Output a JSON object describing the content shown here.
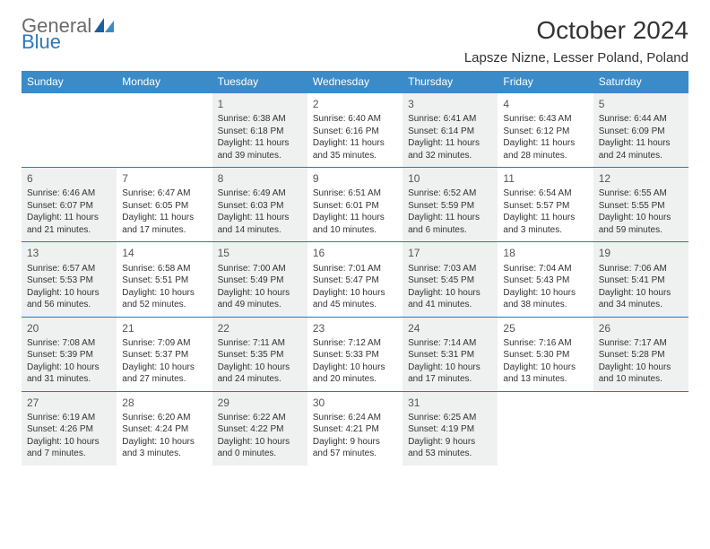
{
  "brand": {
    "word1": "General",
    "word2": "Blue"
  },
  "title": "October 2024",
  "location": "Lapsze Nizne, Lesser Poland, Poland",
  "colors": {
    "header_bg": "#3b8bc9",
    "header_text": "#ffffff",
    "rule": "#2f77bb",
    "shaded_bg": "#eff0f0",
    "brand_gray": "#6b6b6b",
    "brand_blue": "#2f77bb"
  },
  "weekdays": [
    "Sunday",
    "Monday",
    "Tuesday",
    "Wednesday",
    "Thursday",
    "Friday",
    "Saturday"
  ],
  "weeks": [
    [
      {
        "num": "",
        "sunrise": "",
        "sunset": "",
        "daylight": "",
        "shaded": true
      },
      {
        "num": "",
        "sunrise": "",
        "sunset": "",
        "daylight": "",
        "shaded": false
      },
      {
        "num": "1",
        "sunrise": "Sunrise: 6:38 AM",
        "sunset": "Sunset: 6:18 PM",
        "daylight": "Daylight: 11 hours and 39 minutes.",
        "shaded": true
      },
      {
        "num": "2",
        "sunrise": "Sunrise: 6:40 AM",
        "sunset": "Sunset: 6:16 PM",
        "daylight": "Daylight: 11 hours and 35 minutes.",
        "shaded": false
      },
      {
        "num": "3",
        "sunrise": "Sunrise: 6:41 AM",
        "sunset": "Sunset: 6:14 PM",
        "daylight": "Daylight: 11 hours and 32 minutes.",
        "shaded": true
      },
      {
        "num": "4",
        "sunrise": "Sunrise: 6:43 AM",
        "sunset": "Sunset: 6:12 PM",
        "daylight": "Daylight: 11 hours and 28 minutes.",
        "shaded": false
      },
      {
        "num": "5",
        "sunrise": "Sunrise: 6:44 AM",
        "sunset": "Sunset: 6:09 PM",
        "daylight": "Daylight: 11 hours and 24 minutes.",
        "shaded": true
      }
    ],
    [
      {
        "num": "6",
        "sunrise": "Sunrise: 6:46 AM",
        "sunset": "Sunset: 6:07 PM",
        "daylight": "Daylight: 11 hours and 21 minutes.",
        "shaded": true
      },
      {
        "num": "7",
        "sunrise": "Sunrise: 6:47 AM",
        "sunset": "Sunset: 6:05 PM",
        "daylight": "Daylight: 11 hours and 17 minutes.",
        "shaded": false
      },
      {
        "num": "8",
        "sunrise": "Sunrise: 6:49 AM",
        "sunset": "Sunset: 6:03 PM",
        "daylight": "Daylight: 11 hours and 14 minutes.",
        "shaded": true
      },
      {
        "num": "9",
        "sunrise": "Sunrise: 6:51 AM",
        "sunset": "Sunset: 6:01 PM",
        "daylight": "Daylight: 11 hours and 10 minutes.",
        "shaded": false
      },
      {
        "num": "10",
        "sunrise": "Sunrise: 6:52 AM",
        "sunset": "Sunset: 5:59 PM",
        "daylight": "Daylight: 11 hours and 6 minutes.",
        "shaded": true
      },
      {
        "num": "11",
        "sunrise": "Sunrise: 6:54 AM",
        "sunset": "Sunset: 5:57 PM",
        "daylight": "Daylight: 11 hours and 3 minutes.",
        "shaded": false
      },
      {
        "num": "12",
        "sunrise": "Sunrise: 6:55 AM",
        "sunset": "Sunset: 5:55 PM",
        "daylight": "Daylight: 10 hours and 59 minutes.",
        "shaded": true
      }
    ],
    [
      {
        "num": "13",
        "sunrise": "Sunrise: 6:57 AM",
        "sunset": "Sunset: 5:53 PM",
        "daylight": "Daylight: 10 hours and 56 minutes.",
        "shaded": true
      },
      {
        "num": "14",
        "sunrise": "Sunrise: 6:58 AM",
        "sunset": "Sunset: 5:51 PM",
        "daylight": "Daylight: 10 hours and 52 minutes.",
        "shaded": false
      },
      {
        "num": "15",
        "sunrise": "Sunrise: 7:00 AM",
        "sunset": "Sunset: 5:49 PM",
        "daylight": "Daylight: 10 hours and 49 minutes.",
        "shaded": true
      },
      {
        "num": "16",
        "sunrise": "Sunrise: 7:01 AM",
        "sunset": "Sunset: 5:47 PM",
        "daylight": "Daylight: 10 hours and 45 minutes.",
        "shaded": false
      },
      {
        "num": "17",
        "sunrise": "Sunrise: 7:03 AM",
        "sunset": "Sunset: 5:45 PM",
        "daylight": "Daylight: 10 hours and 41 minutes.",
        "shaded": true
      },
      {
        "num": "18",
        "sunrise": "Sunrise: 7:04 AM",
        "sunset": "Sunset: 5:43 PM",
        "daylight": "Daylight: 10 hours and 38 minutes.",
        "shaded": false
      },
      {
        "num": "19",
        "sunrise": "Sunrise: 7:06 AM",
        "sunset": "Sunset: 5:41 PM",
        "daylight": "Daylight: 10 hours and 34 minutes.",
        "shaded": true
      }
    ],
    [
      {
        "num": "20",
        "sunrise": "Sunrise: 7:08 AM",
        "sunset": "Sunset: 5:39 PM",
        "daylight": "Daylight: 10 hours and 31 minutes.",
        "shaded": true
      },
      {
        "num": "21",
        "sunrise": "Sunrise: 7:09 AM",
        "sunset": "Sunset: 5:37 PM",
        "daylight": "Daylight: 10 hours and 27 minutes.",
        "shaded": false
      },
      {
        "num": "22",
        "sunrise": "Sunrise: 7:11 AM",
        "sunset": "Sunset: 5:35 PM",
        "daylight": "Daylight: 10 hours and 24 minutes.",
        "shaded": true
      },
      {
        "num": "23",
        "sunrise": "Sunrise: 7:12 AM",
        "sunset": "Sunset: 5:33 PM",
        "daylight": "Daylight: 10 hours and 20 minutes.",
        "shaded": false
      },
      {
        "num": "24",
        "sunrise": "Sunrise: 7:14 AM",
        "sunset": "Sunset: 5:31 PM",
        "daylight": "Daylight: 10 hours and 17 minutes.",
        "shaded": true
      },
      {
        "num": "25",
        "sunrise": "Sunrise: 7:16 AM",
        "sunset": "Sunset: 5:30 PM",
        "daylight": "Daylight: 10 hours and 13 minutes.",
        "shaded": false
      },
      {
        "num": "26",
        "sunrise": "Sunrise: 7:17 AM",
        "sunset": "Sunset: 5:28 PM",
        "daylight": "Daylight: 10 hours and 10 minutes.",
        "shaded": true
      }
    ],
    [
      {
        "num": "27",
        "sunrise": "Sunrise: 6:19 AM",
        "sunset": "Sunset: 4:26 PM",
        "daylight": "Daylight: 10 hours and 7 minutes.",
        "shaded": true
      },
      {
        "num": "28",
        "sunrise": "Sunrise: 6:20 AM",
        "sunset": "Sunset: 4:24 PM",
        "daylight": "Daylight: 10 hours and 3 minutes.",
        "shaded": false
      },
      {
        "num": "29",
        "sunrise": "Sunrise: 6:22 AM",
        "sunset": "Sunset: 4:22 PM",
        "daylight": "Daylight: 10 hours and 0 minutes.",
        "shaded": true
      },
      {
        "num": "30",
        "sunrise": "Sunrise: 6:24 AM",
        "sunset": "Sunset: 4:21 PM",
        "daylight": "Daylight: 9 hours and 57 minutes.",
        "shaded": false
      },
      {
        "num": "31",
        "sunrise": "Sunrise: 6:25 AM",
        "sunset": "Sunset: 4:19 PM",
        "daylight": "Daylight: 9 hours and 53 minutes.",
        "shaded": true
      },
      {
        "num": "",
        "sunrise": "",
        "sunset": "",
        "daylight": "",
        "shaded": false
      },
      {
        "num": "",
        "sunrise": "",
        "sunset": "",
        "daylight": "",
        "shaded": true
      }
    ]
  ]
}
